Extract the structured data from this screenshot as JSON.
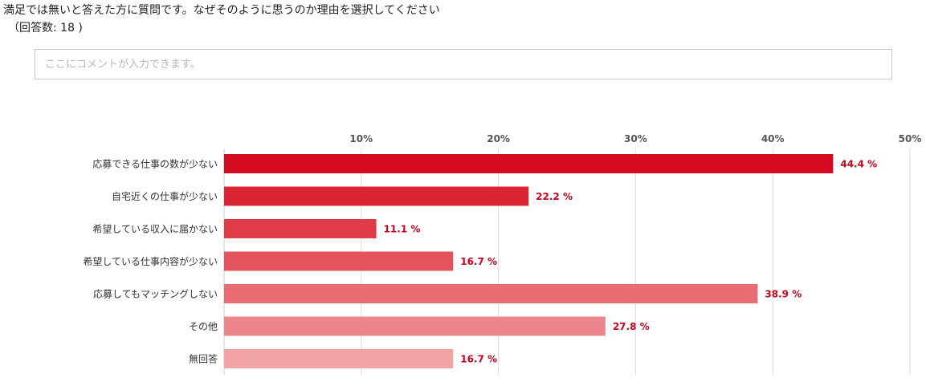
{
  "survey": {
    "question": "満足では無いと答えた方に質問です。なぜそのように思うのか理由を選択してください",
    "response_count": "（回答数: 18 )",
    "comment_placeholder": "ここにコメントが入力できます。"
  },
  "chart_data": {
    "type": "bar",
    "orientation": "horizontal",
    "categories": [
      "応募できる仕事の数が少ない",
      "自宅近くの仕事が少ない",
      "希望している収入に届かない",
      "希望している仕事内容が少ない",
      "応募してもマッチングしない",
      "その他",
      "無回答"
    ],
    "values": [
      44.4,
      22.2,
      11.1,
      16.7,
      38.9,
      27.8,
      16.7
    ],
    "value_labels": [
      "44.4 %",
      "22.2 %",
      "11.1 %",
      "16.7 %",
      "38.9 %",
      "27.8 %",
      "16.7 %"
    ],
    "xlim": [
      0,
      50
    ],
    "ticks": [
      10,
      20,
      30,
      40,
      50
    ],
    "tick_labels": [
      "10%",
      "20%",
      "30%",
      "40%",
      "50%"
    ],
    "grid": true,
    "bar_colors": [
      "#d50a1e",
      "#dc2534",
      "#e03c47",
      "#e4535c",
      "#e86c72",
      "#ec868a",
      "#f0a2a5"
    ],
    "label_color": "#d0021b"
  }
}
